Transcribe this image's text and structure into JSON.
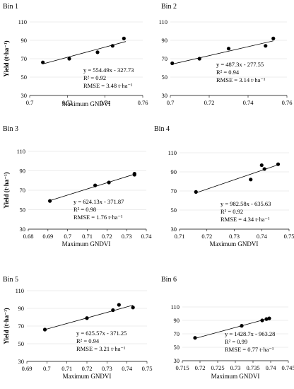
{
  "chart_data": [
    {
      "type": "scatter",
      "title": "Bin 1",
      "xlabel": "Maximum GNDVI",
      "ylabel": "Yield (t·ha⁻¹)",
      "xlim": [
        0.7,
        0.76
      ],
      "ylim": [
        30,
        110
      ],
      "xticks": [
        0.7,
        0.72,
        0.74,
        0.76
      ],
      "xtick_labels": [
        "0.7",
        "0.72",
        "0.74",
        "0.76"
      ],
      "yticks": [
        30,
        50,
        70,
        90,
        110
      ],
      "ytick_labels": [
        "30",
        "50",
        "70",
        "90",
        "110"
      ],
      "grid": "horizontal",
      "points": [
        [
          0.707,
          66
        ],
        [
          0.721,
          70
        ],
        [
          0.736,
          77
        ],
        [
          0.744,
          84
        ],
        [
          0.75,
          92
        ]
      ],
      "trendline": [
        [
          0.707,
          64.3
        ],
        [
          0.751,
          88.7
        ]
      ],
      "equation": "y = 554.49x - 327.73",
      "r2": "R² = 0.92",
      "rmse": "RMSE = 3.48 t·ha⁻¹"
    },
    {
      "type": "scatter",
      "title": "Bin 2",
      "xlabel": "",
      "ylabel": "",
      "xlim": [
        0.7,
        0.76
      ],
      "ylim": [
        30,
        110
      ],
      "xticks": [
        0.7,
        0.72,
        0.74,
        0.76
      ],
      "xtick_labels": [
        "0.7",
        "0.72",
        "0.74",
        "0.76"
      ],
      "yticks": [
        30,
        50,
        70,
        90,
        110
      ],
      "ytick_labels": [
        "30",
        "50",
        "70",
        "90",
        "110"
      ],
      "grid": "horizontal",
      "points": [
        [
          0.701,
          65
        ],
        [
          0.715,
          70
        ],
        [
          0.73,
          81
        ],
        [
          0.749,
          84
        ],
        [
          0.753,
          92
        ]
      ],
      "trendline": [
        [
          0.701,
          64.1
        ],
        [
          0.753,
          89.4
        ]
      ],
      "equation": "y = 487.3x - 277.55",
      "r2": "R² = 0.94",
      "rmse": "RMSE = 3.14 t·ha⁻¹"
    },
    {
      "type": "scatter",
      "title": "Bin 3",
      "xlabel": "Maximum GNDVI",
      "ylabel": "Yield (t·ha⁻¹)",
      "xlim": [
        0.68,
        0.74
      ],
      "ylim": [
        30,
        110
      ],
      "xticks": [
        0.68,
        0.69,
        0.7,
        0.71,
        0.72,
        0.73,
        0.74
      ],
      "xtick_labels": [
        "0.68",
        "0.69",
        "0.7",
        "0.71",
        "0.72",
        "0.73",
        "0.74"
      ],
      "yticks": [
        30,
        50,
        70,
        90,
        110
      ],
      "ytick_labels": [
        "30",
        "50",
        "70",
        "90",
        "110"
      ],
      "grid": "horizontal",
      "points": [
        [
          0.691,
          59
        ],
        [
          0.714,
          75
        ],
        [
          0.721,
          78
        ],
        [
          0.734,
          86
        ],
        [
          0.734,
          87
        ]
      ],
      "trendline": [
        [
          0.691,
          59.4
        ],
        [
          0.734,
          86.5
        ]
      ],
      "equation": "y = 624.13x - 371.87",
      "r2": "R² = 0.98",
      "rmse": "RMSE = 1.76 t·ha⁻¹"
    },
    {
      "type": "scatter",
      "title": "Bin 4",
      "xlabel": "Maximum GNDVI",
      "ylabel": "",
      "xlim": [
        0.71,
        0.75
      ],
      "ylim": [
        30,
        110
      ],
      "xticks": [
        0.71,
        0.72,
        0.73,
        0.74,
        0.75
      ],
      "xtick_labels": [
        "0.71",
        "0.72",
        "0.73",
        "0.74",
        "0.75"
      ],
      "yticks": [
        30,
        50,
        70,
        90,
        110
      ],
      "ytick_labels": [
        "30",
        "50",
        "70",
        "90",
        "110"
      ],
      "grid": "horizontal",
      "points": [
        [
          0.716,
          69
        ],
        [
          0.736,
          82
        ],
        [
          0.74,
          97
        ],
        [
          0.741,
          93
        ],
        [
          0.746,
          98
        ]
      ],
      "trendline": [
        [
          0.716,
          68
        ],
        [
          0.746,
          97.4
        ]
      ],
      "equation": "y = 982.58x - 635.63",
      "r2": "R² = 0.92",
      "rmse": "RMSE = 4.34 t·ha⁻¹"
    },
    {
      "type": "scatter",
      "title": "Bin 5",
      "xlabel": "Maximum GNDVI",
      "ylabel": "Yield (t·ha⁻¹)",
      "xlim": [
        0.69,
        0.75
      ],
      "ylim": [
        30,
        110
      ],
      "xticks": [
        0.69,
        0.7,
        0.71,
        0.72,
        0.73,
        0.74,
        0.75
      ],
      "xtick_labels": [
        "0.69",
        "0.7",
        "0.71",
        "0.72",
        "0.73",
        "0.74",
        "0.75"
      ],
      "yticks": [
        30,
        50,
        70,
        90,
        110
      ],
      "ytick_labels": [
        "30",
        "50",
        "70",
        "90",
        "110"
      ],
      "grid": "horizontal",
      "points": [
        [
          0.699,
          66
        ],
        [
          0.72,
          79
        ],
        [
          0.733,
          88
        ],
        [
          0.736,
          94
        ],
        [
          0.743,
          91
        ]
      ],
      "trendline": [
        [
          0.699,
          66
        ],
        [
          0.743,
          93.6
        ]
      ],
      "equation": "y = 625.57x - 371.25",
      "r2": "R² = 0.94",
      "rmse": "RMSE = 3.21 t·ha⁻¹"
    },
    {
      "type": "scatter",
      "title": "Bin 6",
      "xlabel": "Maximum GNDVI",
      "ylabel": "",
      "xlim": [
        0.715,
        0.745
      ],
      "ylim": [
        30,
        110
      ],
      "xticks": [
        0.715,
        0.72,
        0.725,
        0.73,
        0.735,
        0.74,
        0.745
      ],
      "xtick_labels": [
        "0.715",
        "0.72",
        "0.725",
        "0.73",
        "0.735",
        "0.74",
        "0.745"
      ],
      "yticks": [
        30,
        50,
        70,
        90,
        110
      ],
      "ytick_labels": [
        "30",
        "50",
        "70",
        "90",
        "110"
      ],
      "grid": "horizontal",
      "points": [
        [
          0.7186,
          64
        ],
        [
          0.7318,
          82
        ],
        [
          0.7376,
          90
        ],
        [
          0.7388,
          92
        ],
        [
          0.7396,
          93
        ]
      ],
      "trendline": [
        [
          0.7186,
          63.2
        ],
        [
          0.7396,
          93.2
        ]
      ],
      "equation": "y = 1428.7x - 963.28",
      "r2": "R² = 0.99",
      "rmse": "RMSE = 0.77 t·ha⁻¹"
    }
  ]
}
